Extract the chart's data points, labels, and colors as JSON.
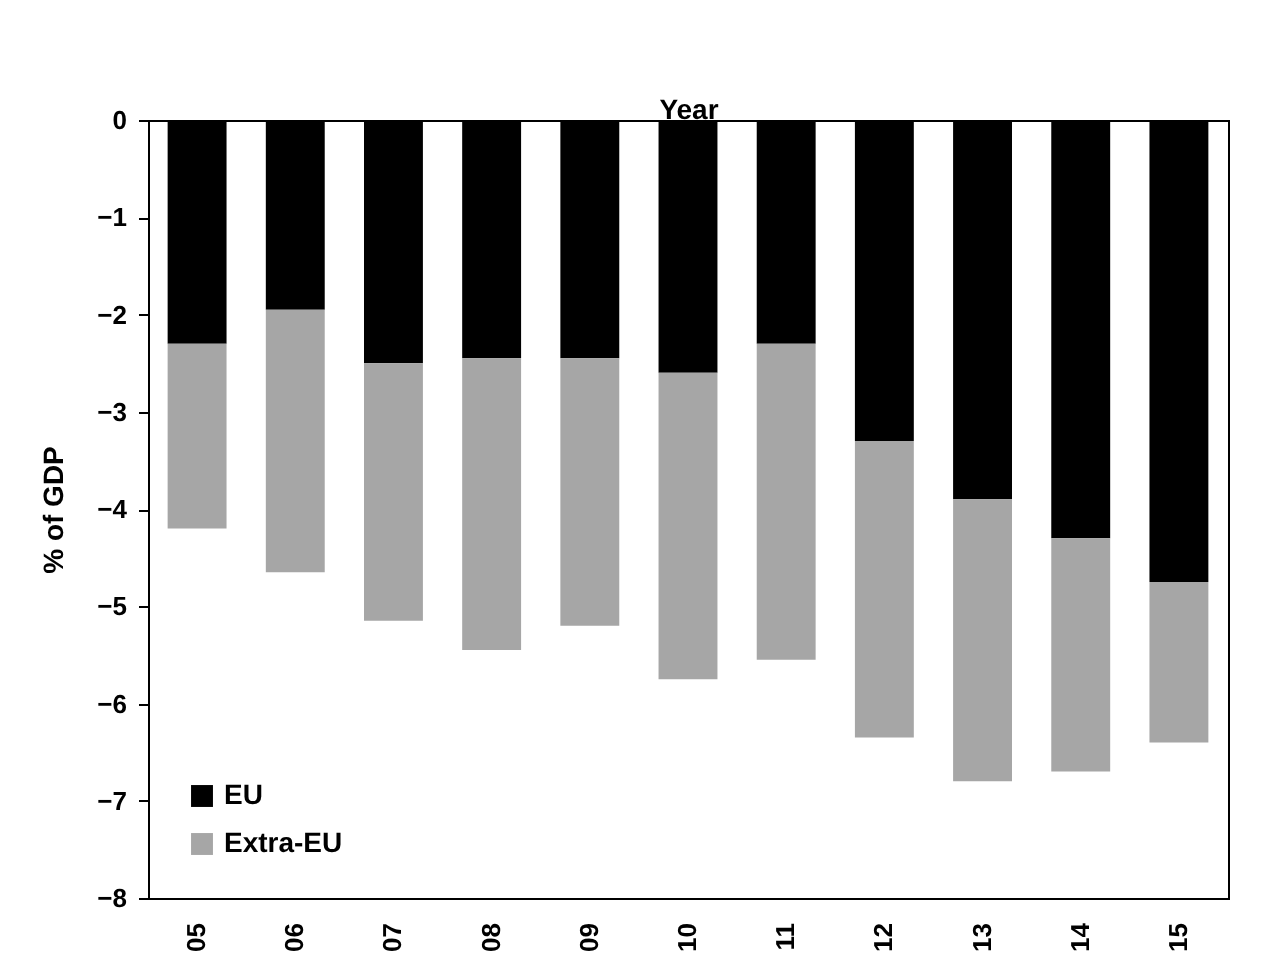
{
  "chart_data": {
    "type": "bar",
    "xlabel": "Year",
    "ylabel": "% of GDP",
    "stacked": true,
    "categories": [
      "05",
      "06",
      "07",
      "08",
      "09",
      "10",
      "11",
      "12",
      "13",
      "14",
      "15"
    ],
    "series": [
      {
        "name": "EU",
        "color": "#000000",
        "values": [
          -2.3,
          -1.95,
          -2.5,
          -2.45,
          -2.45,
          -2.6,
          -2.3,
          -3.3,
          -3.9,
          -4.3,
          -4.75
        ]
      },
      {
        "name": "Extra-EU",
        "color": "#a6a6a6",
        "values": [
          -1.9,
          -2.7,
          -2.65,
          -3.0,
          -2.75,
          -3.15,
          -3.25,
          -3.05,
          -2.9,
          -2.4,
          -1.65
        ]
      }
    ],
    "ylim": [
      -8,
      0
    ],
    "yticks": [
      -8,
      -7,
      -6,
      -5,
      -4,
      -3,
      -2,
      -1,
      0
    ],
    "grid": false,
    "legend": "bottom left"
  }
}
